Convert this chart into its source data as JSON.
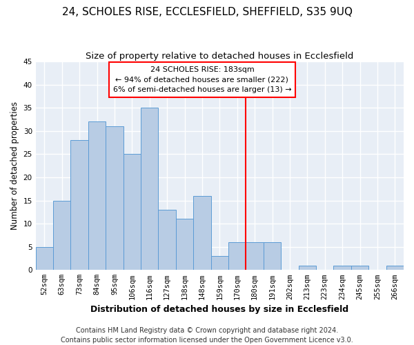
{
  "title": "24, SCHOLES RISE, ECCLESFIELD, SHEFFIELD, S35 9UQ",
  "subtitle": "Size of property relative to detached houses in Ecclesfield",
  "xlabel": "Distribution of detached houses by size in Ecclesfield",
  "ylabel": "Number of detached properties",
  "categories": [
    "52sqm",
    "63sqm",
    "73sqm",
    "84sqm",
    "95sqm",
    "106sqm",
    "116sqm",
    "127sqm",
    "138sqm",
    "148sqm",
    "159sqm",
    "170sqm",
    "180sqm",
    "191sqm",
    "202sqm",
    "213sqm",
    "223sqm",
    "234sqm",
    "245sqm",
    "255sqm",
    "266sqm"
  ],
  "values": [
    5,
    15,
    28,
    32,
    31,
    25,
    35,
    13,
    11,
    16,
    3,
    6,
    6,
    6,
    0,
    1,
    0,
    1,
    1,
    0,
    1
  ],
  "bar_color": "#b8cce4",
  "bar_edge_color": "#5b9bd5",
  "marker_line_idx": 12,
  "annotation_title": "24 SCHOLES RISE: 183sqm",
  "annotation_line1": "← 94% of detached houses are smaller (222)",
  "annotation_line2": "6% of semi-detached houses are larger (13) →",
  "footnote1": "Contains HM Land Registry data © Crown copyright and database right 2024.",
  "footnote2": "Contains public sector information licensed under the Open Government Licence v3.0.",
  "ylim": [
    0,
    45
  ],
  "yticks": [
    0,
    5,
    10,
    15,
    20,
    25,
    30,
    35,
    40,
    45
  ],
  "bg_color": "#e8eef6",
  "grid_color": "#ffffff",
  "title_fontsize": 11,
  "subtitle_fontsize": 9.5,
  "xlabel_fontsize": 9,
  "ylabel_fontsize": 8.5,
  "tick_fontsize": 7.5,
  "annot_fontsize": 8,
  "footnote_fontsize": 7
}
